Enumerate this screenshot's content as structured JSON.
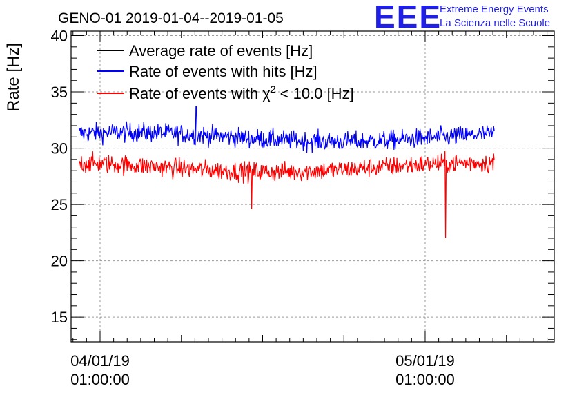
{
  "title": "GENO-01 2019-01-04--2019-01-05",
  "logo": {
    "text": "EEE",
    "line1": "Extreme Energy Events",
    "line2": "La Scienza nelle Scuole"
  },
  "chart_data": {
    "type": "line",
    "title": "GENO-01 2019-01-04--2019-01-05",
    "ylabel": "Rate [Hz]",
    "xlabel": "",
    "ylim": [
      12.8,
      40.4
    ],
    "yticks": [
      15,
      20,
      25,
      30,
      35,
      40
    ],
    "x_range_hours": [
      -1.14,
      34.53
    ],
    "x_data_range_hours": [
      -0.55,
      30.1
    ],
    "xticks": [
      {
        "hour": 1,
        "date": "04/01/19",
        "time": "01:00:00"
      },
      {
        "hour": 25,
        "date": "05/01/19",
        "time": "01:00:00"
      }
    ],
    "grid": true,
    "legend_position": "top-left",
    "series": [
      {
        "name": "Average rate of events [Hz]",
        "color": "#000000",
        "mean": null
      },
      {
        "name": "Rate of events with hits [Hz]",
        "color": "#0000ff",
        "mean": 31.0,
        "noise": 0.85,
        "spikes": [
          {
            "hour": 8.1,
            "value": 33.7
          }
        ]
      },
      {
        "name": "Rate of events with χ2 < 10.0 [Hz]",
        "color": "#ff0000",
        "mean": 28.3,
        "noise": 0.85,
        "dips": [
          {
            "hour": 12.2,
            "value": 24.6
          },
          {
            "hour": 26.5,
            "value": 22.0
          }
        ]
      }
    ],
    "legend": [
      {
        "label": "Average rate of events [Hz]",
        "color": "#000000"
      },
      {
        "label": "Rate of events with hits [Hz]",
        "color": "#0000ff"
      },
      {
        "label_main": "Rate of events with χ",
        "label_sup": "2",
        "label_tail": " < 10.0 [Hz]",
        "color": "#ff0000"
      }
    ]
  }
}
